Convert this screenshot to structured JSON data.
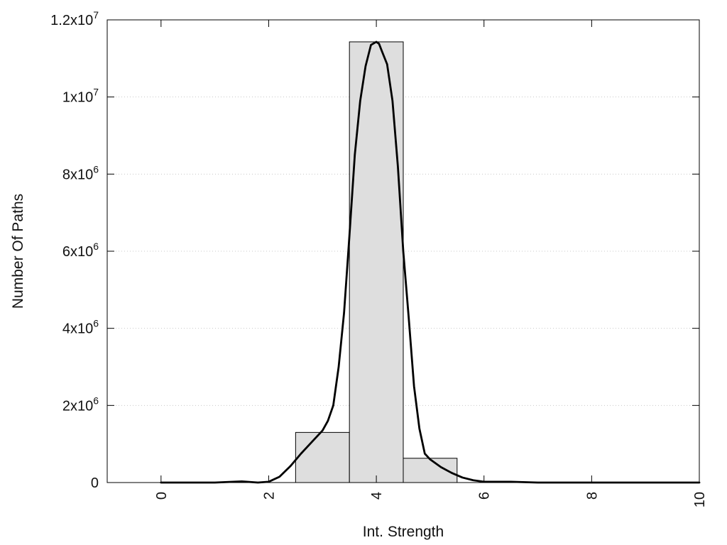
{
  "chart_data": {
    "type": "bar",
    "xlabel": "Int. Strength",
    "ylabel": "Number Of Paths",
    "xlim": [
      -1,
      10
    ],
    "ylim": [
      0,
      12000000
    ],
    "x_ticks": [
      {
        "value": 0,
        "label": "0"
      },
      {
        "value": 2,
        "label": "2"
      },
      {
        "value": 4,
        "label": "4"
      },
      {
        "value": 6,
        "label": "6"
      },
      {
        "value": 8,
        "label": "8"
      },
      {
        "value": 10,
        "label": "10"
      }
    ],
    "y_ticks": [
      {
        "value": 0,
        "mantissa": "0",
        "exponent": ""
      },
      {
        "value": 2000000,
        "mantissa": "2x10",
        "exponent": "6"
      },
      {
        "value": 4000000,
        "mantissa": "4x10",
        "exponent": "6"
      },
      {
        "value": 6000000,
        "mantissa": "6x10",
        "exponent": "6"
      },
      {
        "value": 8000000,
        "mantissa": "8x10",
        "exponent": "6"
      },
      {
        "value": 10000000,
        "mantissa": "1x10",
        "exponent": "7"
      },
      {
        "value": 12000000,
        "mantissa": "1.2x10",
        "exponent": "7"
      }
    ],
    "grid": "horizontal-dotted",
    "bars": [
      {
        "x_start": 2.5,
        "x_end": 3.5,
        "value": 1300000
      },
      {
        "x_start": 3.5,
        "x_end": 4.5,
        "value": 11430000
      },
      {
        "x_start": 4.5,
        "x_end": 5.5,
        "value": 630000
      }
    ],
    "curve": {
      "type": "line",
      "x": [
        0,
        0.5,
        1,
        1.5,
        1.8,
        2,
        2.2,
        2.4,
        2.6,
        2.8,
        3,
        3.1,
        3.2,
        3.3,
        3.4,
        3.5,
        3.6,
        3.7,
        3.8,
        3.9,
        4,
        4.05,
        4.1,
        4.2,
        4.3,
        4.4,
        4.5,
        4.6,
        4.7,
        4.8,
        4.9,
        5,
        5.2,
        5.4,
        5.6,
        5.8,
        6,
        6.5,
        7,
        8,
        9,
        10
      ],
      "y": [
        0,
        0,
        0,
        30000,
        0,
        20000,
        150000,
        420000,
        750000,
        1050000,
        1350000,
        1600000,
        2000000,
        3000000,
        4400000,
        6400000,
        8500000,
        9900000,
        10800000,
        11350000,
        11430000,
        11380000,
        11200000,
        10850000,
        9900000,
        8200000,
        6000000,
        4300000,
        2500000,
        1400000,
        750000,
        600000,
        400000,
        250000,
        130000,
        60000,
        20000,
        20000,
        0,
        0,
        0,
        0
      ]
    }
  }
}
